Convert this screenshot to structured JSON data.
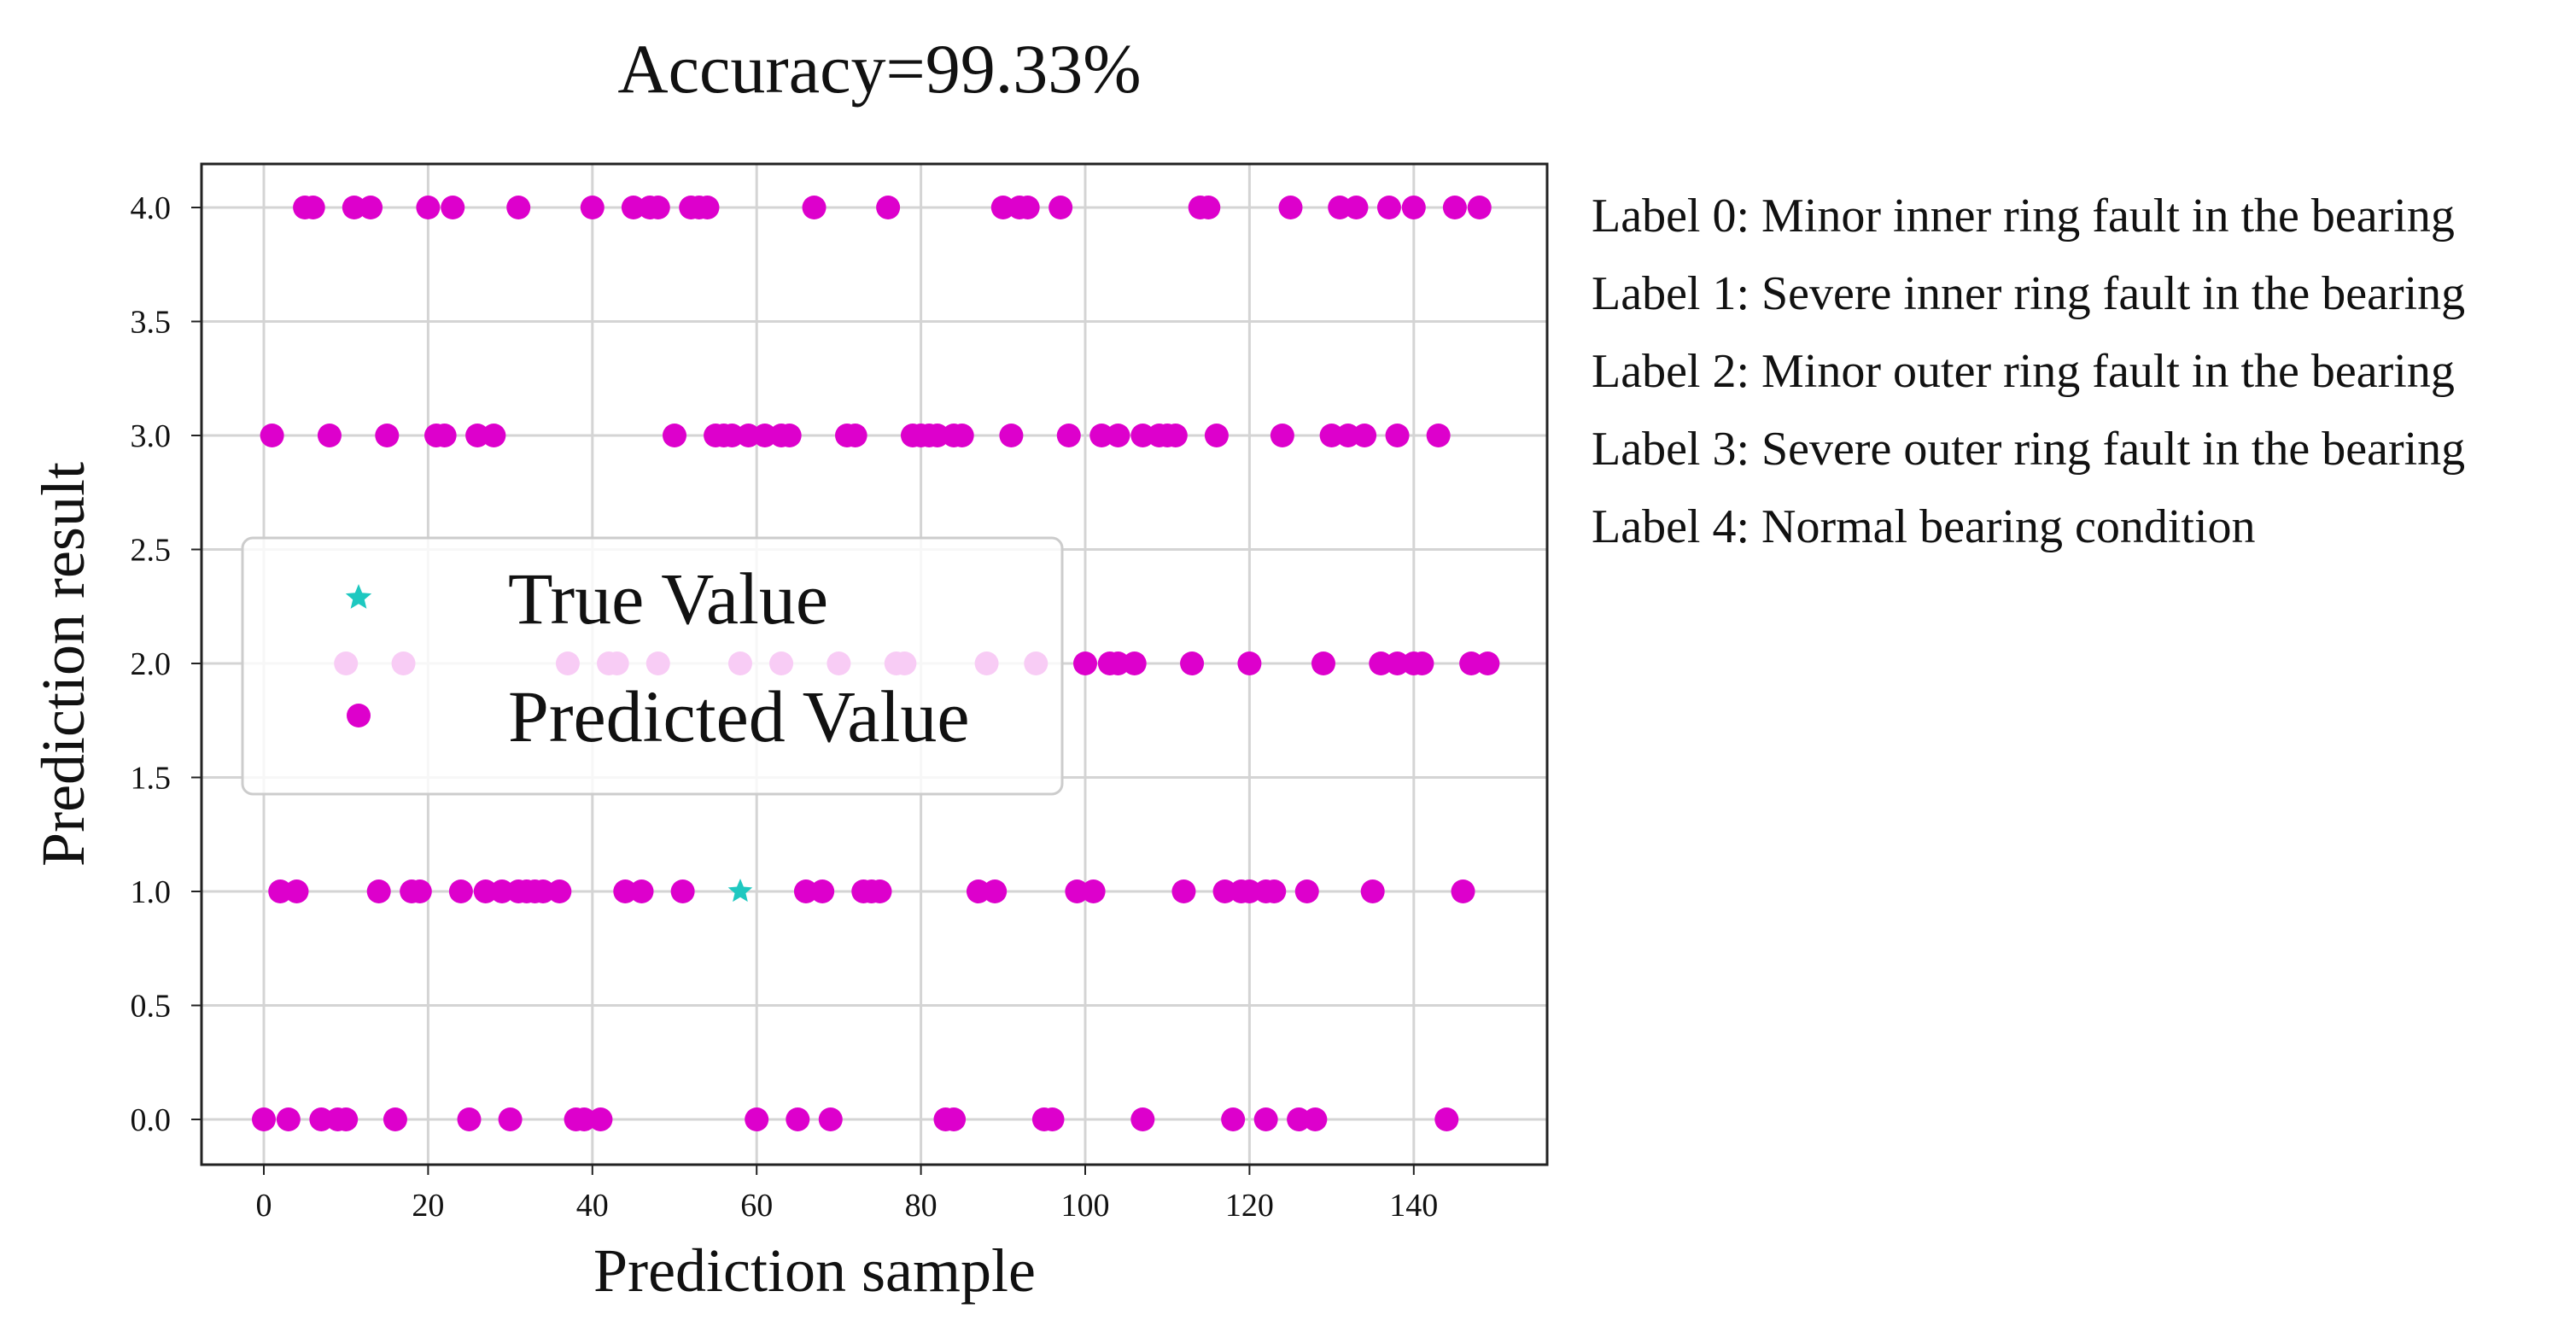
{
  "chart_data": {
    "type": "scatter",
    "title": "Accuracy=99.33%",
    "xlabel": "Prediction sample",
    "ylabel": "Prediction result",
    "xlim": [
      -8,
      156
    ],
    "ylim": [
      -0.2,
      4.2
    ],
    "xticks": [
      0,
      20,
      40,
      60,
      80,
      100,
      120,
      140
    ],
    "xtick_labels": [
      "0",
      "20",
      "40",
      "60",
      "80",
      "100",
      "120",
      "140"
    ],
    "yticks": [
      0.0,
      0.5,
      1.0,
      1.5,
      2.0,
      2.5,
      3.0,
      3.5,
      4.0
    ],
    "ytick_labels": [
      "0.0",
      "0.5",
      "1.0",
      "1.5",
      "2.0",
      "2.5",
      "3.0",
      "3.5",
      "4.0"
    ],
    "grid": true,
    "legend": {
      "placement": "center-left",
      "entries": [
        {
          "label": "True Value",
          "marker": "star",
          "color": "#1ec8c0"
        },
        {
          "label": "Predicted Value",
          "marker": "circle",
          "color": "#dd00cc"
        }
      ]
    },
    "series": [
      {
        "name": "True Value",
        "marker": "star",
        "color": "#1ec8c0",
        "points": [
          [
            58,
            1.0
          ]
        ]
      },
      {
        "name": "Predicted Value",
        "marker": "circle",
        "color": "#dd00cc",
        "points": [
          [
            5,
            4
          ],
          [
            6,
            4
          ],
          [
            11,
            4
          ],
          [
            13,
            4
          ],
          [
            20,
            4
          ],
          [
            23,
            4
          ],
          [
            31,
            4
          ],
          [
            40,
            4
          ],
          [
            45,
            4
          ],
          [
            47,
            4
          ],
          [
            48,
            4
          ],
          [
            52,
            4
          ],
          [
            53,
            4
          ],
          [
            54,
            4
          ],
          [
            67,
            4
          ],
          [
            76,
            4
          ],
          [
            90,
            4
          ],
          [
            92,
            4
          ],
          [
            93,
            4
          ],
          [
            97,
            4
          ],
          [
            114,
            4
          ],
          [
            115,
            4
          ],
          [
            125,
            4
          ],
          [
            131,
            4
          ],
          [
            133,
            4
          ],
          [
            137,
            4
          ],
          [
            140,
            4
          ],
          [
            145,
            4
          ],
          [
            148,
            4
          ],
          [
            1,
            3
          ],
          [
            8,
            3
          ],
          [
            15,
            3
          ],
          [
            21,
            3
          ],
          [
            22,
            3
          ],
          [
            26,
            3
          ],
          [
            28,
            3
          ],
          [
            50,
            3
          ],
          [
            55,
            3
          ],
          [
            56,
            3
          ],
          [
            57,
            3
          ],
          [
            59,
            3
          ],
          [
            61,
            3
          ],
          [
            63,
            3
          ],
          [
            64,
            3
          ],
          [
            71,
            3
          ],
          [
            72,
            3
          ],
          [
            79,
            3
          ],
          [
            80,
            3
          ],
          [
            81,
            3
          ],
          [
            82,
            3
          ],
          [
            84,
            3
          ],
          [
            85,
            3
          ],
          [
            91,
            3
          ],
          [
            98,
            3
          ],
          [
            102,
            3
          ],
          [
            104,
            3
          ],
          [
            107,
            3
          ],
          [
            109,
            3
          ],
          [
            110,
            3
          ],
          [
            111,
            3
          ],
          [
            116,
            3
          ],
          [
            124,
            3
          ],
          [
            130,
            3
          ],
          [
            132,
            3
          ],
          [
            134,
            3
          ],
          [
            138,
            3
          ],
          [
            143,
            3
          ],
          [
            10,
            2
          ],
          [
            17,
            2
          ],
          [
            37,
            2
          ],
          [
            42,
            2
          ],
          [
            43,
            2
          ],
          [
            48,
            2
          ],
          [
            58,
            2
          ],
          [
            63,
            2
          ],
          [
            70,
            2
          ],
          [
            77,
            2
          ],
          [
            78,
            2
          ],
          [
            88,
            2
          ],
          [
            94,
            2
          ],
          [
            100,
            2
          ],
          [
            103,
            2
          ],
          [
            104,
            2
          ],
          [
            106,
            2
          ],
          [
            113,
            2
          ],
          [
            120,
            2
          ],
          [
            129,
            2
          ],
          [
            136,
            2
          ],
          [
            138,
            2
          ],
          [
            140,
            2
          ],
          [
            141,
            2
          ],
          [
            147,
            2
          ],
          [
            149,
            2
          ],
          [
            2,
            1
          ],
          [
            4,
            1
          ],
          [
            14,
            1
          ],
          [
            18,
            1
          ],
          [
            19,
            1
          ],
          [
            24,
            1
          ],
          [
            27,
            1
          ],
          [
            29,
            1
          ],
          [
            31,
            1
          ],
          [
            32,
            1
          ],
          [
            33,
            1
          ],
          [
            34,
            1
          ],
          [
            36,
            1
          ],
          [
            44,
            1
          ],
          [
            46,
            1
          ],
          [
            51,
            1
          ],
          [
            66,
            1
          ],
          [
            68,
            1
          ],
          [
            73,
            1
          ],
          [
            74,
            1
          ],
          [
            75,
            1
          ],
          [
            87,
            1
          ],
          [
            89,
            1
          ],
          [
            99,
            1
          ],
          [
            101,
            1
          ],
          [
            112,
            1
          ],
          [
            117,
            1
          ],
          [
            119,
            1
          ],
          [
            120,
            1
          ],
          [
            122,
            1
          ],
          [
            123,
            1
          ],
          [
            127,
            1
          ],
          [
            135,
            1
          ],
          [
            146,
            1
          ],
          [
            0,
            0
          ],
          [
            3,
            0
          ],
          [
            7,
            0
          ],
          [
            9,
            0
          ],
          [
            10,
            0
          ],
          [
            16,
            0
          ],
          [
            25,
            0
          ],
          [
            30,
            0
          ],
          [
            38,
            0
          ],
          [
            39,
            0
          ],
          [
            41,
            0
          ],
          [
            60,
            0
          ],
          [
            65,
            0
          ],
          [
            69,
            0
          ],
          [
            83,
            0
          ],
          [
            84,
            0
          ],
          [
            95,
            0
          ],
          [
            96,
            0
          ],
          [
            107,
            0
          ],
          [
            118,
            0
          ],
          [
            122,
            0
          ],
          [
            126,
            0
          ],
          [
            128,
            0
          ],
          [
            144,
            0
          ]
        ]
      }
    ]
  },
  "labels_panel": {
    "lines": [
      "Label 0: Minor inner ring fault in the bearing",
      "Label 1: Severe inner ring fault in the bearing",
      "Label 2: Minor outer ring fault in the bearing",
      "Label 3: Severe outer ring fault in the bearing",
      "Label 4: Normal bearing condition"
    ]
  },
  "colors": {
    "predicted": "#dd00cc",
    "true": "#1ec8c0",
    "grid": "#d4d4d4",
    "axes": "#222222"
  }
}
